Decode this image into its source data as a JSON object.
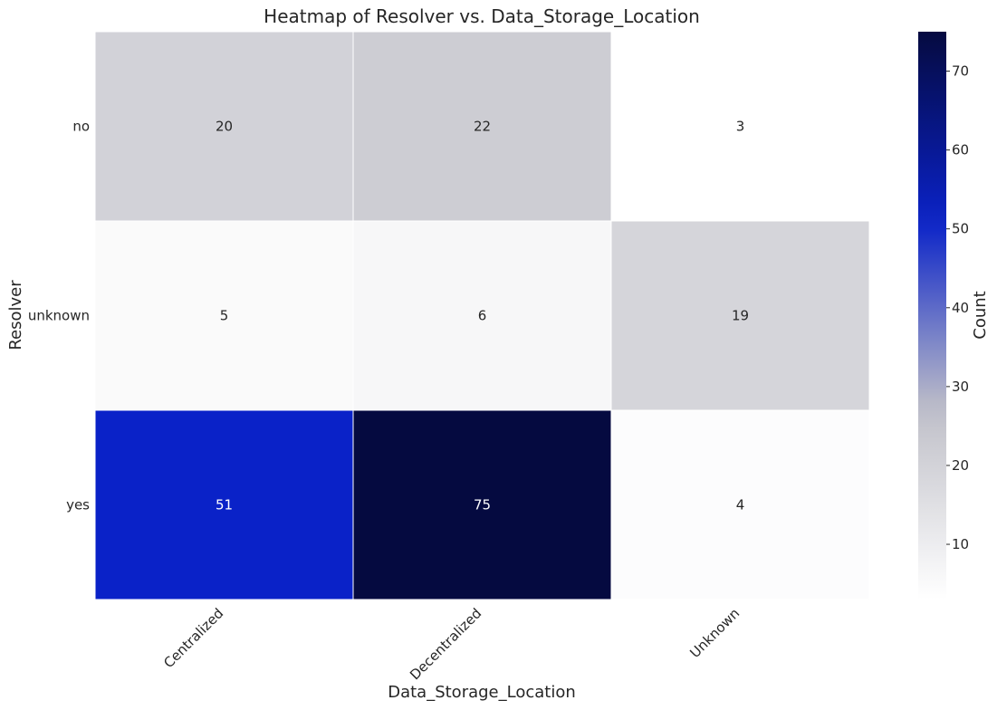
{
  "chart_data": {
    "type": "heatmap",
    "title": "Heatmap of Resolver vs. Data_Storage_Location",
    "xlabel": "Data_Storage_Location",
    "ylabel": "Resolver",
    "x_categories": [
      "Centralized",
      "Decentralized",
      "Unknown"
    ],
    "y_categories": [
      "no",
      "unknown",
      "yes"
    ],
    "values": [
      [
        20,
        22,
        3
      ],
      [
        5,
        6,
        19
      ],
      [
        51,
        75,
        4
      ]
    ],
    "colorbar": {
      "label": "Count",
      "min": 3,
      "max": 75,
      "ticks": [
        10,
        20,
        30,
        40,
        50,
        60,
        70
      ]
    },
    "colormap": [
      "#ffffff",
      "#c0c0c8",
      "#0a22c8",
      "#050a40"
    ],
    "grid": false
  }
}
